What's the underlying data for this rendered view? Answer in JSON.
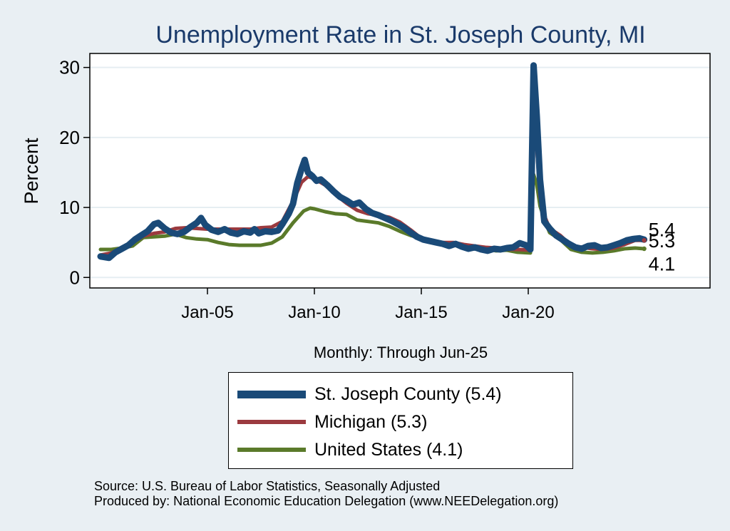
{
  "chart_data": {
    "type": "line",
    "title": "Unemployment Rate in St. Joseph  County, MI",
    "xlabel": "Monthly: Through Jun-25",
    "ylabel": "Percent",
    "x_ticks": [
      {
        "label": "Jan-05",
        "value": 2005.0
      },
      {
        "label": "Jan-10",
        "value": 2010.0
      },
      {
        "label": "Jan-15",
        "value": 2015.0
      },
      {
        "label": "Jan-20",
        "value": 2020.0
      }
    ],
    "y_ticks": [
      0,
      10,
      20,
      30
    ],
    "xlim": [
      1999.5,
      2028.5
    ],
    "ylim": [
      -1.5,
      32
    ],
    "grid": true,
    "legend_position": "bottom",
    "end_labels": [
      "5.4",
      "5.3",
      "4.1"
    ],
    "series": [
      {
        "name": "St. Joseph  County (5.4)",
        "color": "#1a4a78",
        "width": 9,
        "points": [
          [
            2000.0,
            3.0
          ],
          [
            2000.4,
            2.8
          ],
          [
            2000.7,
            3.6
          ],
          [
            2001.0,
            4.1
          ],
          [
            2001.3,
            4.6
          ],
          [
            2001.6,
            5.4
          ],
          [
            2001.9,
            6.0
          ],
          [
            2002.2,
            6.6
          ],
          [
            2002.5,
            7.6
          ],
          [
            2002.7,
            7.8
          ],
          [
            2003.0,
            7.0
          ],
          [
            2003.3,
            6.4
          ],
          [
            2003.6,
            6.2
          ],
          [
            2003.9,
            6.5
          ],
          [
            2004.2,
            7.2
          ],
          [
            2004.5,
            7.8
          ],
          [
            2004.7,
            8.5
          ],
          [
            2004.9,
            7.5
          ],
          [
            2005.2,
            6.8
          ],
          [
            2005.5,
            6.5
          ],
          [
            2005.8,
            6.9
          ],
          [
            2006.1,
            6.4
          ],
          [
            2006.4,
            6.2
          ],
          [
            2006.7,
            6.6
          ],
          [
            2007.0,
            6.4
          ],
          [
            2007.2,
            6.9
          ],
          [
            2007.4,
            6.3
          ],
          [
            2007.7,
            6.6
          ],
          [
            2008.0,
            6.5
          ],
          [
            2008.3,
            6.7
          ],
          [
            2008.5,
            7.6
          ],
          [
            2008.8,
            9.1
          ],
          [
            2009.0,
            10.5
          ],
          [
            2009.2,
            13.5
          ],
          [
            2009.4,
            15.5
          ],
          [
            2009.55,
            16.8
          ],
          [
            2009.7,
            15.0
          ],
          [
            2009.9,
            14.5
          ],
          [
            2010.1,
            13.8
          ],
          [
            2010.3,
            14.0
          ],
          [
            2010.6,
            13.2
          ],
          [
            2010.9,
            12.3
          ],
          [
            2011.2,
            11.5
          ],
          [
            2011.5,
            11.0
          ],
          [
            2011.8,
            10.4
          ],
          [
            2012.1,
            10.7
          ],
          [
            2012.4,
            9.8
          ],
          [
            2012.7,
            9.2
          ],
          [
            2013.0,
            8.9
          ],
          [
            2013.3,
            8.5
          ],
          [
            2013.6,
            8.1
          ],
          [
            2013.9,
            7.6
          ],
          [
            2014.2,
            7.1
          ],
          [
            2014.5,
            6.4
          ],
          [
            2014.8,
            5.8
          ],
          [
            2015.1,
            5.4
          ],
          [
            2015.4,
            5.2
          ],
          [
            2015.7,
            5.0
          ],
          [
            2016.0,
            4.8
          ],
          [
            2016.3,
            4.5
          ],
          [
            2016.6,
            4.8
          ],
          [
            2016.9,
            4.4
          ],
          [
            2017.2,
            4.1
          ],
          [
            2017.5,
            4.3
          ],
          [
            2017.8,
            4.0
          ],
          [
            2018.1,
            3.8
          ],
          [
            2018.4,
            4.1
          ],
          [
            2018.7,
            4.0
          ],
          [
            2019.0,
            4.2
          ],
          [
            2019.3,
            4.3
          ],
          [
            2019.6,
            4.9
          ],
          [
            2019.9,
            4.6
          ],
          [
            2020.1,
            4.0
          ],
          [
            2020.25,
            30.3
          ],
          [
            2020.4,
            23.0
          ],
          [
            2020.55,
            14.0
          ],
          [
            2020.75,
            8.0
          ],
          [
            2021.0,
            7.0
          ],
          [
            2021.3,
            6.0
          ],
          [
            2021.6,
            5.4
          ],
          [
            2021.9,
            4.8
          ],
          [
            2022.2,
            4.3
          ],
          [
            2022.5,
            4.1
          ],
          [
            2022.8,
            4.5
          ],
          [
            2023.1,
            4.6
          ],
          [
            2023.4,
            4.2
          ],
          [
            2023.7,
            4.3
          ],
          [
            2024.0,
            4.6
          ],
          [
            2024.3,
            4.9
          ],
          [
            2024.6,
            5.3
          ],
          [
            2024.9,
            5.5
          ],
          [
            2025.2,
            5.6
          ],
          [
            2025.42,
            5.4
          ]
        ]
      },
      {
        "name": "Michigan (5.3)",
        "color": "#9b3a3f",
        "width": 5,
        "points": [
          [
            2000.0,
            3.2
          ],
          [
            2000.5,
            3.5
          ],
          [
            2001.0,
            4.3
          ],
          [
            2001.5,
            5.0
          ],
          [
            2002.0,
            5.9
          ],
          [
            2002.5,
            6.3
          ],
          [
            2003.0,
            6.5
          ],
          [
            2003.5,
            7.0
          ],
          [
            2004.0,
            7.1
          ],
          [
            2004.5,
            7.0
          ],
          [
            2005.0,
            6.9
          ],
          [
            2005.5,
            6.9
          ],
          [
            2006.0,
            6.9
          ],
          [
            2006.5,
            6.9
          ],
          [
            2007.0,
            6.9
          ],
          [
            2007.5,
            7.1
          ],
          [
            2008.0,
            7.2
          ],
          [
            2008.5,
            8.0
          ],
          [
            2009.0,
            10.9
          ],
          [
            2009.4,
            13.6
          ],
          [
            2009.7,
            14.4
          ],
          [
            2010.0,
            14.1
          ],
          [
            2010.5,
            13.2
          ],
          [
            2011.0,
            11.8
          ],
          [
            2011.5,
            10.6
          ],
          [
            2012.0,
            9.6
          ],
          [
            2012.5,
            9.1
          ],
          [
            2013.0,
            8.9
          ],
          [
            2013.5,
            8.6
          ],
          [
            2014.0,
            7.9
          ],
          [
            2014.5,
            6.8
          ],
          [
            2015.0,
            5.6
          ],
          [
            2015.5,
            5.2
          ],
          [
            2016.0,
            5.0
          ],
          [
            2016.5,
            5.0
          ],
          [
            2017.0,
            4.7
          ],
          [
            2017.5,
            4.5
          ],
          [
            2018.0,
            4.3
          ],
          [
            2018.5,
            4.2
          ],
          [
            2019.0,
            4.0
          ],
          [
            2019.5,
            4.0
          ],
          [
            2020.1,
            3.9
          ],
          [
            2020.25,
            22.6
          ],
          [
            2020.4,
            18.5
          ],
          [
            2020.55,
            11.5
          ],
          [
            2020.8,
            8.5
          ],
          [
            2021.0,
            7.0
          ],
          [
            2021.5,
            6.0
          ],
          [
            2022.0,
            4.6
          ],
          [
            2022.5,
            4.3
          ],
          [
            2023.0,
            4.1
          ],
          [
            2023.5,
            4.0
          ],
          [
            2024.0,
            4.2
          ],
          [
            2024.5,
            4.7
          ],
          [
            2025.0,
            5.3
          ],
          [
            2025.42,
            5.3
          ]
        ]
      },
      {
        "name": "United States (4.1)",
        "color": "#5a7a2a",
        "width": 5,
        "points": [
          [
            2000.0,
            4.0
          ],
          [
            2000.5,
            4.0
          ],
          [
            2001.0,
            4.2
          ],
          [
            2001.5,
            4.5
          ],
          [
            2002.0,
            5.7
          ],
          [
            2002.5,
            5.8
          ],
          [
            2003.0,
            5.9
          ],
          [
            2003.5,
            6.2
          ],
          [
            2004.0,
            5.7
          ],
          [
            2004.5,
            5.5
          ],
          [
            2005.0,
            5.4
          ],
          [
            2005.5,
            5.0
          ],
          [
            2006.0,
            4.7
          ],
          [
            2006.5,
            4.6
          ],
          [
            2007.0,
            4.6
          ],
          [
            2007.5,
            4.6
          ],
          [
            2008.0,
            4.9
          ],
          [
            2008.5,
            5.8
          ],
          [
            2009.0,
            7.8
          ],
          [
            2009.5,
            9.5
          ],
          [
            2009.8,
            9.9
          ],
          [
            2010.0,
            9.8
          ],
          [
            2010.5,
            9.4
          ],
          [
            2011.0,
            9.1
          ],
          [
            2011.5,
            9.0
          ],
          [
            2012.0,
            8.2
          ],
          [
            2012.5,
            8.0
          ],
          [
            2013.0,
            7.8
          ],
          [
            2013.5,
            7.3
          ],
          [
            2014.0,
            6.6
          ],
          [
            2014.5,
            6.0
          ],
          [
            2015.0,
            5.6
          ],
          [
            2015.5,
            5.1
          ],
          [
            2016.0,
            4.9
          ],
          [
            2016.5,
            4.9
          ],
          [
            2017.0,
            4.6
          ],
          [
            2017.5,
            4.3
          ],
          [
            2018.0,
            4.1
          ],
          [
            2018.5,
            3.8
          ],
          [
            2019.0,
            3.9
          ],
          [
            2019.5,
            3.6
          ],
          [
            2020.1,
            3.5
          ],
          [
            2020.25,
            14.7
          ],
          [
            2020.4,
            13.3
          ],
          [
            2020.55,
            10.2
          ],
          [
            2020.8,
            7.9
          ],
          [
            2021.0,
            6.4
          ],
          [
            2021.5,
            5.4
          ],
          [
            2022.0,
            4.0
          ],
          [
            2022.5,
            3.6
          ],
          [
            2023.0,
            3.5
          ],
          [
            2023.5,
            3.6
          ],
          [
            2024.0,
            3.8
          ],
          [
            2024.5,
            4.1
          ],
          [
            2025.0,
            4.2
          ],
          [
            2025.42,
            4.1
          ]
        ]
      }
    ]
  },
  "source_lines": [
    "Source: U.S. Bureau of Labor Statistics, Seasonally Adjusted",
    "Produced by: National Economic Education Delegation (www.NEEDelegation.org)"
  ]
}
